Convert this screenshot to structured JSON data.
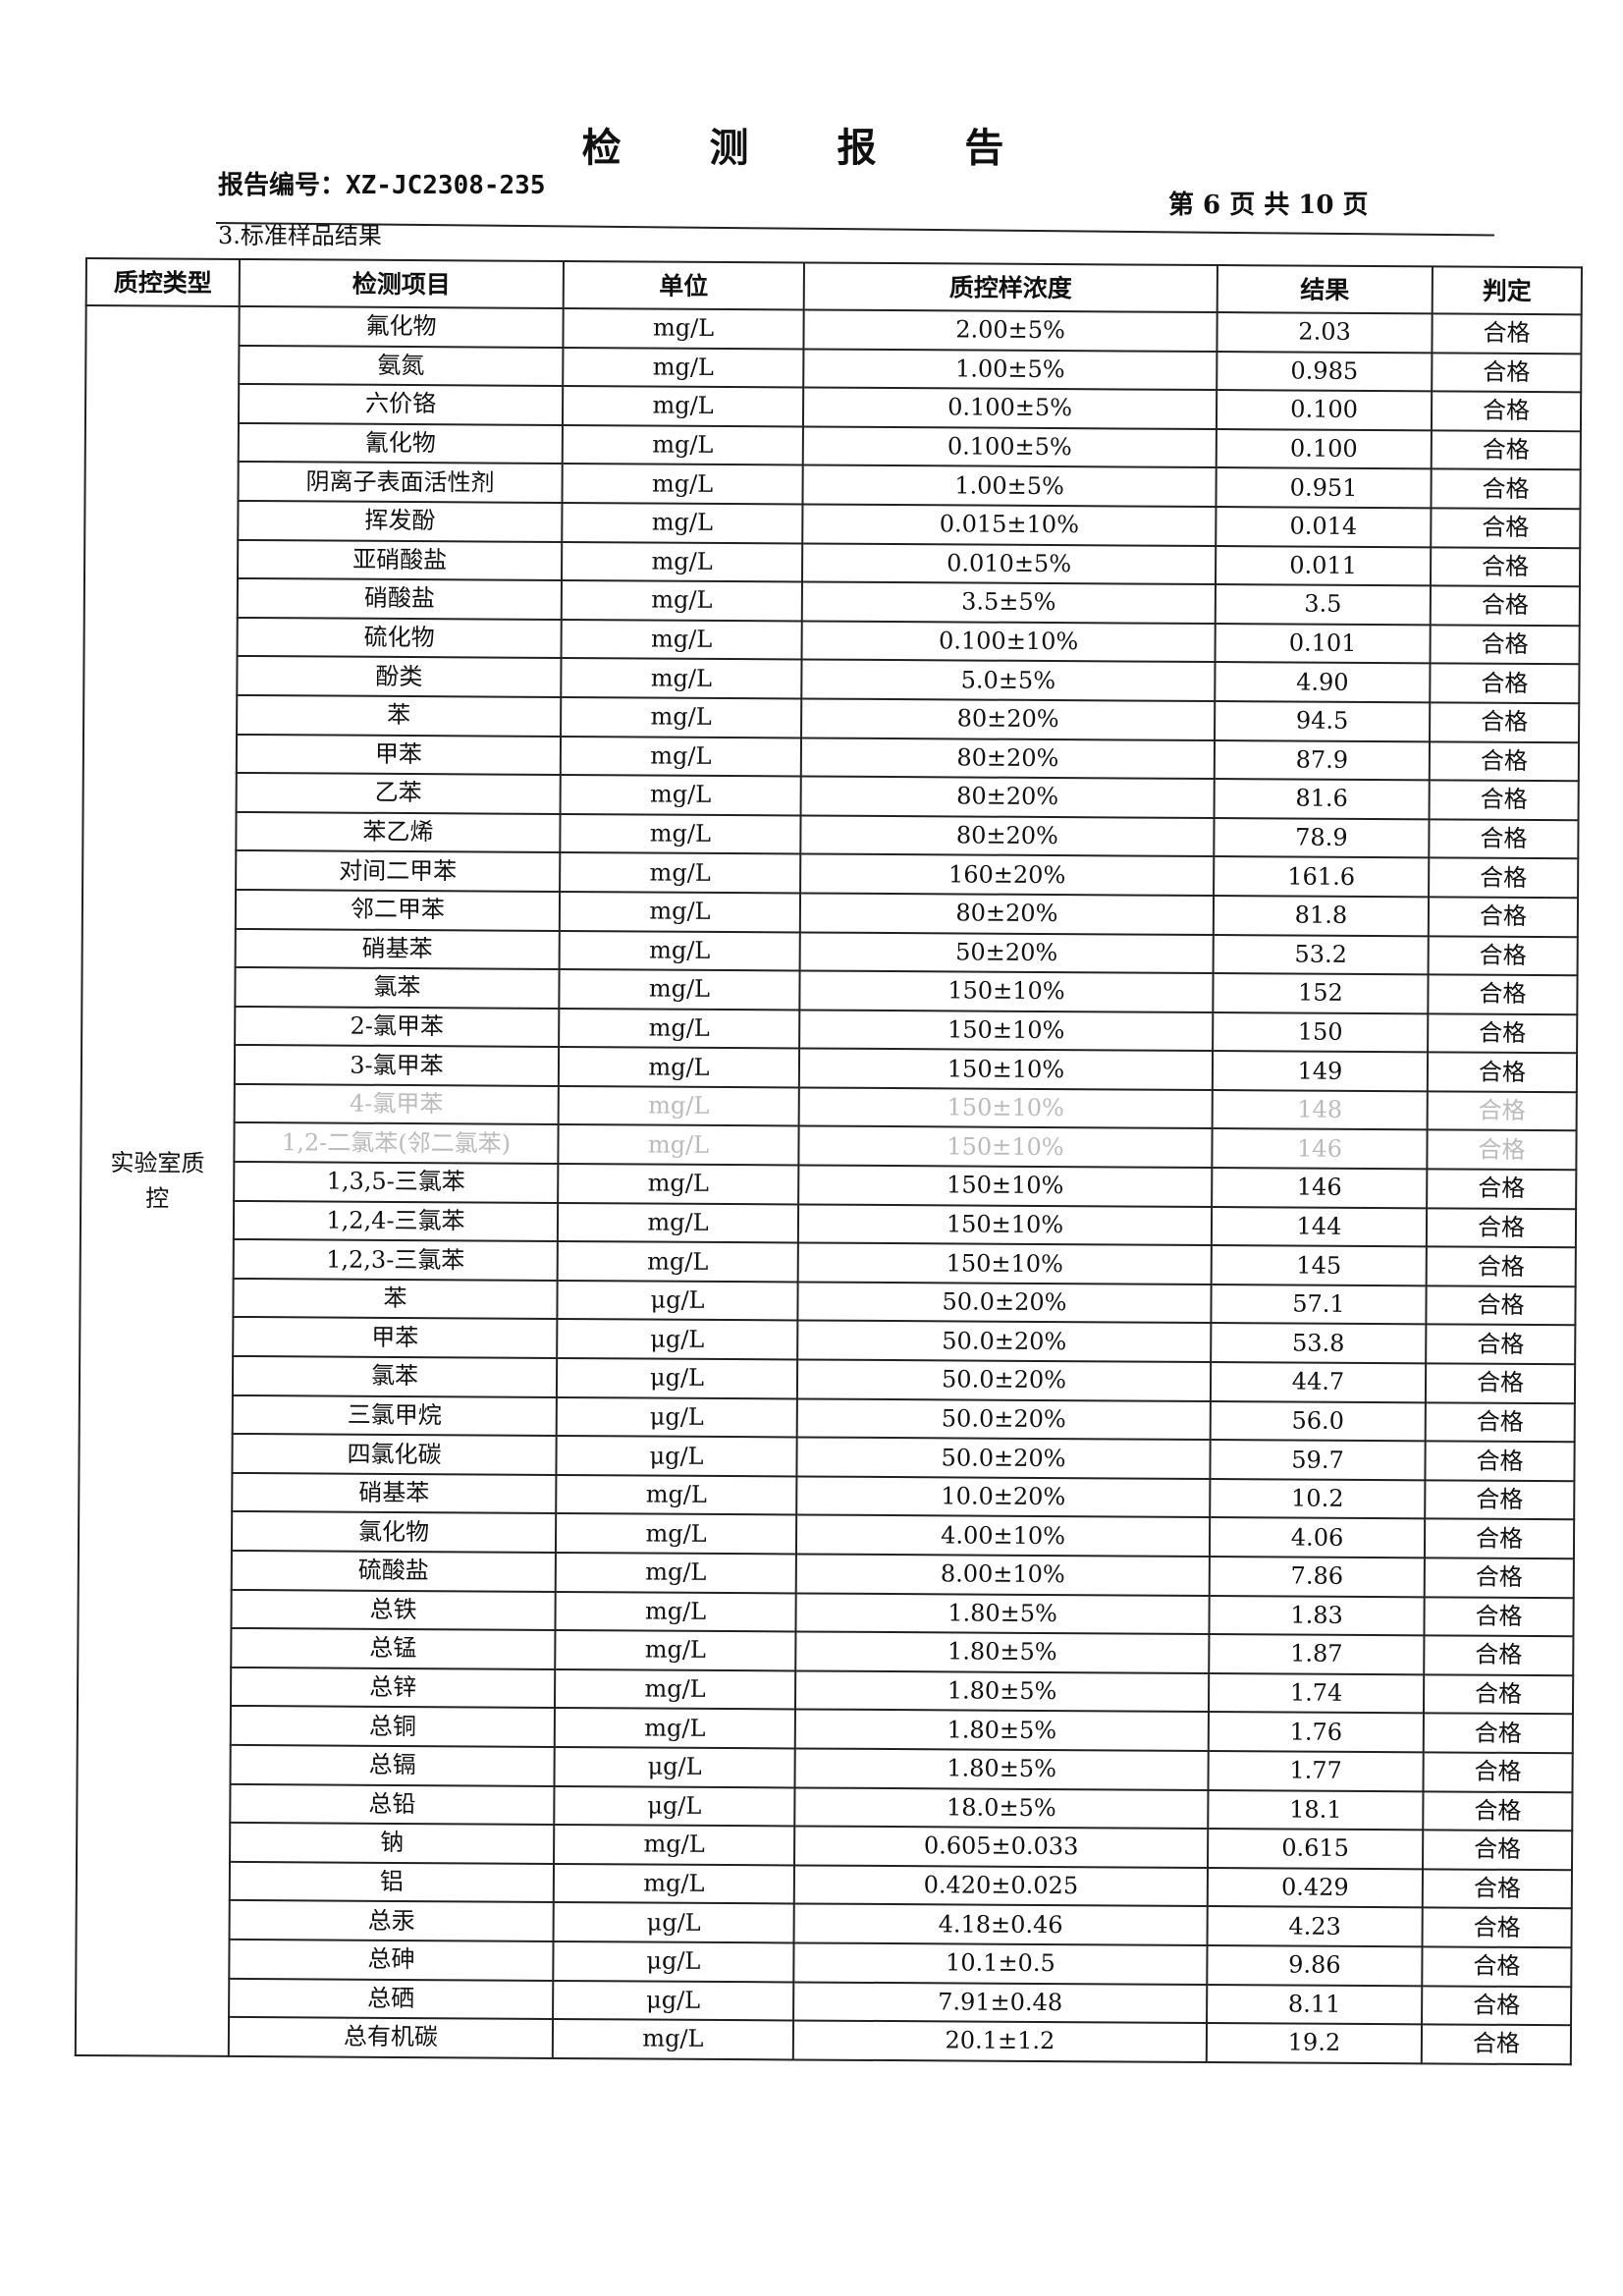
{
  "header": {
    "title": "检 测 报 告",
    "report_number": "报告编号：XZ-JC2308-235",
    "page_info": "第 6 页  共 10 页",
    "section_title": "3.标准样品结果"
  },
  "table": {
    "columns": [
      "质控类型",
      "检测项目",
      "单位",
      "质控样浓度",
      "结果",
      "判定"
    ],
    "qc_type": "实验室质控",
    "rows": [
      [
        "氟化物",
        "mg/L",
        "2.00±5%",
        "2.03",
        "合格"
      ],
      [
        "氨氮",
        "mg/L",
        "1.00±5%",
        "0.985",
        "合格"
      ],
      [
        "六价铬",
        "mg/L",
        "0.100±5%",
        "0.100",
        "合格"
      ],
      [
        "氰化物",
        "mg/L",
        "0.100±5%",
        "0.100",
        "合格"
      ],
      [
        "阴离子表面活性剂",
        "mg/L",
        "1.00±5%",
        "0.951",
        "合格"
      ],
      [
        "挥发酚",
        "mg/L",
        "0.015±10%",
        "0.014",
        "合格"
      ],
      [
        "亚硝酸盐",
        "mg/L",
        "0.010±5%",
        "0.011",
        "合格"
      ],
      [
        "硝酸盐",
        "mg/L",
        "3.5±5%",
        "3.5",
        "合格"
      ],
      [
        "硫化物",
        "mg/L",
        "0.100±10%",
        "0.101",
        "合格"
      ],
      [
        "酚类",
        "mg/L",
        "5.0±5%",
        "4.90",
        "合格"
      ],
      [
        "苯",
        "mg/L",
        "80±20%",
        "94.5",
        "合格"
      ],
      [
        "甲苯",
        "mg/L",
        "80±20%",
        "87.9",
        "合格"
      ],
      [
        "乙苯",
        "mg/L",
        "80±20%",
        "81.6",
        "合格"
      ],
      [
        "苯乙烯",
        "mg/L",
        "80±20%",
        "78.9",
        "合格"
      ],
      [
        "对间二甲苯",
        "mg/L",
        "160±20%",
        "161.6",
        "合格"
      ],
      [
        "邻二甲苯",
        "mg/L",
        "80±20%",
        "81.8",
        "合格"
      ],
      [
        "硝基苯",
        "mg/L",
        "50±20%",
        "53.2",
        "合格"
      ],
      [
        "氯苯",
        "mg/L",
        "150±10%",
        "152",
        "合格"
      ],
      [
        "2-氯甲苯",
        "mg/L",
        "150±10%",
        "150",
        "合格"
      ],
      [
        "3-氯甲苯",
        "mg/L",
        "150±10%",
        "149",
        "合格"
      ],
      [
        "4-氯甲苯",
        "mg/L",
        "150±10%",
        "148",
        "合格"
      ],
      [
        "1,2-二氯苯(邻二氯苯)",
        "mg/L",
        "150±10%",
        "146",
        "合格"
      ],
      [
        "1,3,5-三氯苯",
        "mg/L",
        "150±10%",
        "146",
        "合格"
      ],
      [
        "1,2,4-三氯苯",
        "mg/L",
        "150±10%",
        "144",
        "合格"
      ],
      [
        "1,2,3-三氯苯",
        "mg/L",
        "150±10%",
        "145",
        "合格"
      ],
      [
        "苯",
        "μg/L",
        "50.0±20%",
        "57.1",
        "合格"
      ],
      [
        "甲苯",
        "μg/L",
        "50.0±20%",
        "53.8",
        "合格"
      ],
      [
        "氯苯",
        "μg/L",
        "50.0±20%",
        "44.7",
        "合格"
      ],
      [
        "三氯甲烷",
        "μg/L",
        "50.0±20%",
        "56.0",
        "合格"
      ],
      [
        "四氯化碳",
        "μg/L",
        "50.0±20%",
        "59.7",
        "合格"
      ],
      [
        "硝基苯",
        "mg/L",
        "10.0±20%",
        "10.2",
        "合格"
      ],
      [
        "氯化物",
        "mg/L",
        "4.00±10%",
        "4.06",
        "合格"
      ],
      [
        "硫酸盐",
        "mg/L",
        "8.00±10%",
        "7.86",
        "合格"
      ],
      [
        "总铁",
        "mg/L",
        "1.80±5%",
        "1.83",
        "合格"
      ],
      [
        "总锰",
        "mg/L",
        "1.80±5%",
        "1.87",
        "合格"
      ],
      [
        "总锌",
        "mg/L",
        "1.80±5%",
        "1.74",
        "合格"
      ],
      [
        "总铜",
        "mg/L",
        "1.80±5%",
        "1.76",
        "合格"
      ],
      [
        "总镉",
        "μg/L",
        "1.80±5%",
        "1.77",
        "合格"
      ],
      [
        "总铅",
        "μg/L",
        "18.0±5%",
        "18.1",
        "合格"
      ],
      [
        "钠",
        "mg/L",
        "0.605±0.033",
        "0.615",
        "合格"
      ],
      [
        "铝",
        "mg/L",
        "0.420±0.025",
        "0.429",
        "合格"
      ],
      [
        "总汞",
        "μg/L",
        "4.18±0.46",
        "4.23",
        "合格"
      ],
      [
        "总砷",
        "μg/L",
        "10.1±0.5",
        "9.86",
        "合格"
      ],
      [
        "总硒",
        "μg/L",
        "7.91±0.48",
        "8.11",
        "合格"
      ],
      [
        "总有机碳",
        "mg/L",
        "20.1±1.2",
        "19.2",
        "合格"
      ]
    ]
  }
}
